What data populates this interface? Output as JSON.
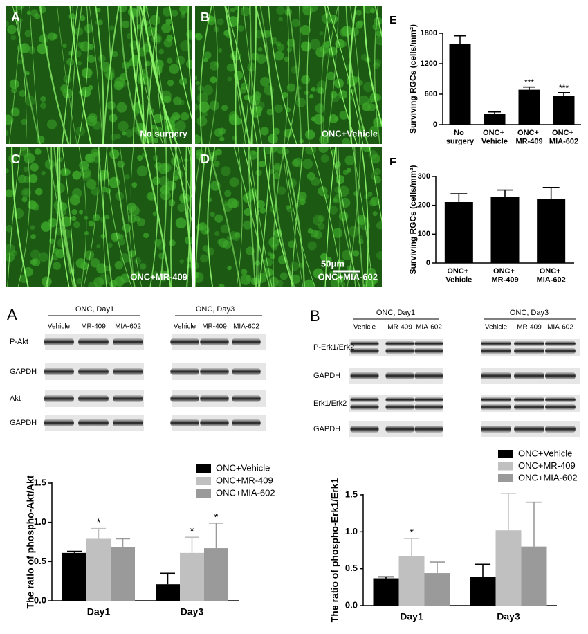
{
  "micrographs": [
    {
      "letter": "A",
      "caption": "No surgery"
    },
    {
      "letter": "B",
      "caption": "ONC+Vehicle"
    },
    {
      "letter": "C",
      "caption": "ONC+MR-409"
    },
    {
      "letter": "D",
      "caption": "ONC+MIA-602"
    }
  ],
  "scale_bar": "50μm",
  "blots": [
    {
      "letter": "A",
      "groups": [
        {
          "title": "ONC, Day1",
          "lanes": [
            "Vehicle",
            "MR-409",
            "MIA-602"
          ]
        },
        {
          "title": "ONC, Day3",
          "lanes": [
            "Vehicle",
            "MR-409",
            "MIA-602"
          ]
        }
      ],
      "rows": [
        "P-Akt",
        "GAPDH",
        "Akt",
        "GAPDH"
      ]
    },
    {
      "letter": "B",
      "groups": [
        {
          "title": "ONC, Day1",
          "lanes": [
            "Vehicle",
            "MR-409",
            "MIA-602"
          ]
        },
        {
          "title": "ONC, Day3",
          "lanes": [
            "Vehicle",
            "MR-409",
            "MIA-602"
          ]
        }
      ],
      "rows": [
        "P-Erk1/Erk2",
        "GAPDH",
        "Erk1/Erk2",
        "GAPDH"
      ]
    }
  ],
  "chart_data": [
    {
      "type": "bar",
      "letter": "E",
      "ylabel": "Surviving RGCs (cells/mm²)",
      "categories": [
        "No surgery",
        "ONC+ Vehicle",
        "ONC+ MR-409",
        "ONC+ MIA-602"
      ],
      "values": [
        1580,
        210,
        680,
        560
      ],
      "errors": [
        170,
        40,
        60,
        70
      ],
      "significance": [
        null,
        null,
        "***",
        "***"
      ],
      "color": "#000000",
      "ylim": [
        0,
        1800
      ],
      "yticks": [
        0,
        600,
        1200,
        1800
      ]
    },
    {
      "type": "bar",
      "letter": "F",
      "ylabel": "Surviving RGCs (cells/mm²)",
      "categories": [
        "ONC+ Vehicle",
        "ONC+ MR-409",
        "ONC+ MIA-602"
      ],
      "values": [
        210,
        228,
        222
      ],
      "errors": [
        30,
        25,
        40
      ],
      "color": "#000000",
      "ylim": [
        0,
        300
      ],
      "yticks": [
        0,
        100,
        200,
        300
      ]
    },
    {
      "type": "bar",
      "ylabel": "The ratio of phospho-Akt/Akt",
      "categories": [
        "Day1",
        "Day3"
      ],
      "series": [
        {
          "name": "ONC+Vehicle",
          "color": "#000000",
          "values": [
            0.61,
            0.21
          ],
          "errors": [
            0.02,
            0.14
          ],
          "significance": [
            null,
            null
          ]
        },
        {
          "name": "ONC+MR-409",
          "color": "#c0c0c0",
          "values": [
            0.79,
            0.61
          ],
          "errors": [
            0.13,
            0.2
          ],
          "significance": [
            "*",
            "*"
          ]
        },
        {
          "name": "ONC+MIA-602",
          "color": "#9a9a9a",
          "values": [
            0.68,
            0.67
          ],
          "errors": [
            0.11,
            0.32
          ],
          "significance": [
            null,
            "*"
          ]
        }
      ],
      "ylim": [
        0,
        1.5
      ],
      "yticks": [
        {
          "value": 0,
          "label": "0.0"
        },
        0.5,
        {
          "value": 1,
          "label": "1.0"
        },
        1.5
      ]
    },
    {
      "type": "bar",
      "ylabel": "The ratio of phospho-Erk1/Erk1",
      "categories": [
        "Day1",
        "Day3"
      ],
      "series": [
        {
          "name": "ONC+Vehicle",
          "color": "#000000",
          "values": [
            0.37,
            0.39
          ],
          "errors": [
            0.02,
            0.17
          ],
          "significance": [
            null,
            null
          ]
        },
        {
          "name": "ONC+MR-409",
          "color": "#c0c0c0",
          "values": [
            0.67,
            1.02
          ],
          "errors": [
            0.24,
            0.5
          ],
          "significance": [
            "*",
            null
          ]
        },
        {
          "name": "ONC+MIA-602",
          "color": "#9a9a9a",
          "values": [
            0.44,
            0.8
          ],
          "errors": [
            0.15,
            0.6
          ],
          "significance": [
            null,
            null
          ]
        }
      ],
      "ylim": [
        0,
        1.5
      ],
      "yticks": [
        {
          "value": 0,
          "label": "0.0"
        },
        0.5,
        {
          "value": 1,
          "label": "1.0"
        },
        1.5
      ]
    }
  ]
}
